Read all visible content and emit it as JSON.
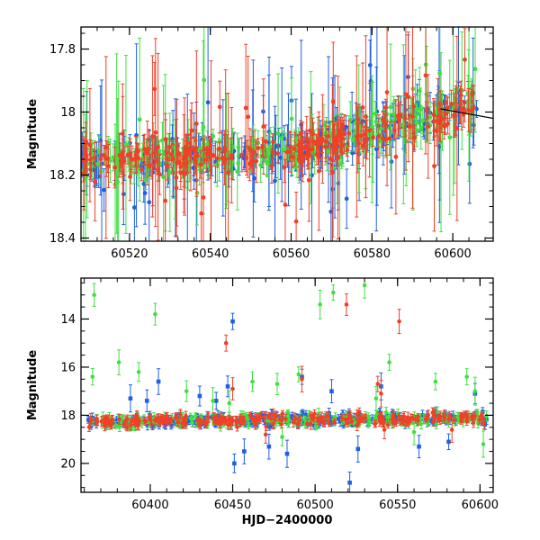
{
  "chart_data": [
    {
      "type": "scatter",
      "panel": "top",
      "title": "",
      "xlabel": "",
      "ylabel": "Magnitude",
      "xlim": [
        60508,
        60610
      ],
      "ylim": [
        18.41,
        17.73
      ],
      "y_inverted": true,
      "xticks": [
        60520,
        60540,
        60560,
        60580,
        60600
      ],
      "yticks": [
        17.8,
        18,
        18.2,
        18.4
      ],
      "ytick_labels": [
        "17.8",
        "18",
        "18.2",
        "18.4"
      ],
      "legend": "none",
      "series": [
        {
          "color": "#2060e0",
          "marker": "circle",
          "x_range": [
            60508,
            60606
          ],
          "typical_y": 18.1,
          "trend": [
            [
              60508,
              18.15
            ],
            [
              60540,
              18.14
            ],
            [
              60560,
              18.12
            ],
            [
              60580,
              18.06
            ],
            [
              60606,
              17.98
            ]
          ]
        },
        {
          "color": "#40e040",
          "marker": "circle",
          "x_range": [
            60508,
            60606
          ],
          "typical_y": 18.1,
          "trend": [
            [
              60508,
              18.15
            ],
            [
              60540,
              18.14
            ],
            [
              60560,
              18.12
            ],
            [
              60580,
              18.06
            ],
            [
              60606,
              17.98
            ]
          ]
        },
        {
          "color": "#f04028",
          "marker": "circle",
          "x_range": [
            60508,
            60606
          ],
          "typical_y": 18.1,
          "trend": [
            [
              60508,
              18.15
            ],
            [
              60540,
              18.14
            ],
            [
              60560,
              18.12
            ],
            [
              60580,
              18.06
            ],
            [
              60606,
              17.98
            ]
          ]
        }
      ],
      "annotations": [
        {
          "type": "line",
          "color": "#000000",
          "from": [
            60597,
            17.99
          ],
          "to": [
            60610,
            18.02
          ]
        }
      ]
    },
    {
      "type": "scatter",
      "panel": "bottom",
      "title": "",
      "xlabel": "HJD−2400000",
      "ylabel": "Magnitude",
      "xlim": [
        60358,
        60608
      ],
      "ylim": [
        21.2,
        12.3
      ],
      "y_inverted": true,
      "xticks": [
        60400,
        60450,
        60500,
        60550,
        60600
      ],
      "yticks": [
        14,
        16,
        18,
        20
      ],
      "ytick_labels": [
        "14",
        "16",
        "18",
        "20"
      ],
      "legend": "none",
      "baseline_y": 18.2,
      "series": [
        {
          "color": "#2060e0",
          "marker": "square",
          "x_range": [
            60362,
            60604
          ],
          "outliers": [
            [
              60388,
              17.3
            ],
            [
              60398,
              17.4
            ],
            [
              60405,
              16.6
            ],
            [
              60430,
              17.2
            ],
            [
              60440,
              17.4
            ],
            [
              60450,
              14.1
            ],
            [
              60447,
              16.8
            ],
            [
              60457,
              19.5
            ],
            [
              60451,
              20.0
            ],
            [
              60472,
              19.3
            ],
            [
              60483,
              19.6
            ],
            [
              60492,
              16.4
            ],
            [
              60510,
              17.0
            ],
            [
              60521,
              20.8
            ],
            [
              60526,
              19.4
            ],
            [
              60540,
              16.8
            ],
            [
              60563,
              19.3
            ],
            [
              60581,
              19.1
            ],
            [
              60597,
              17.1
            ]
          ]
        },
        {
          "color": "#40e040",
          "marker": "circle",
          "x_range": [
            60362,
            60604
          ],
          "outliers": [
            [
              60366,
              13.0
            ],
            [
              60365,
              16.4
            ],
            [
              60381,
              15.8
            ],
            [
              60393,
              16.2
            ],
            [
              60403,
              13.8
            ],
            [
              60422,
              17.0
            ],
            [
              60438,
              17.4
            ],
            [
              60448,
              17.5
            ],
            [
              60462,
              16.6
            ],
            [
              60477,
              16.7
            ],
            [
              60480,
              18.9
            ],
            [
              60490,
              16.3
            ],
            [
              60503,
              13.4
            ],
            [
              60511,
              12.9
            ],
            [
              60530,
              12.6
            ],
            [
              60537,
              17.3
            ],
            [
              60545,
              15.8
            ],
            [
              60560,
              18.7
            ],
            [
              60573,
              16.6
            ],
            [
              60592,
              16.4
            ],
            [
              60597,
              17.0
            ],
            [
              60602,
              19.2
            ]
          ]
        },
        {
          "color": "#f04028",
          "marker": "circle",
          "x_range": [
            60362,
            60604
          ],
          "outliers": [
            [
              60446,
              15.0
            ],
            [
              60450,
              16.9
            ],
            [
              60470,
              18.8
            ],
            [
              60492,
              16.5
            ],
            [
              60519,
              13.4
            ],
            [
              60538,
              16.7
            ],
            [
              60540,
              17.1
            ],
            [
              60542,
              18.6
            ],
            [
              60551,
              14.1
            ],
            [
              60583,
              18.6
            ]
          ]
        }
      ]
    }
  ]
}
